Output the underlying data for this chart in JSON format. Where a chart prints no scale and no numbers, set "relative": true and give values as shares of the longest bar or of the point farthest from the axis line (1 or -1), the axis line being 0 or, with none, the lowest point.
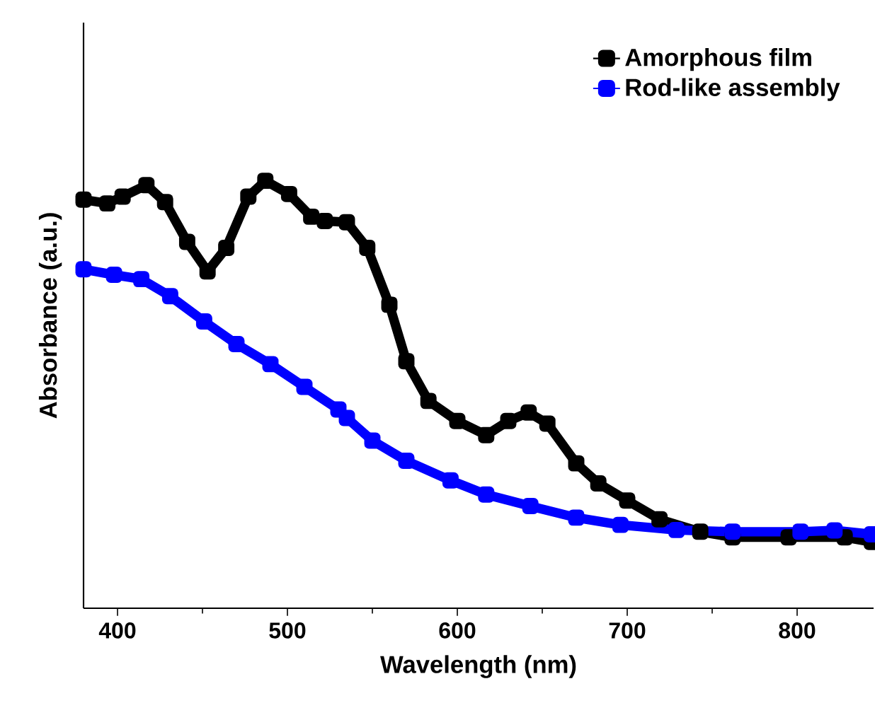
{
  "chart_data": {
    "type": "line",
    "xlabel": "Wavelength (nm)",
    "ylabel": "Absorbance (a.u.)",
    "relative": true,
    "xlim": [
      380,
      845
    ],
    "xticks": [
      400,
      500,
      600,
      700,
      800
    ],
    "tick_labels": "x",
    "legend": "top right",
    "marker": "square",
    "line_style": "solid",
    "series": [
      {
        "name": "Amorphous film",
        "color": "#000000",
        "x": [
          380,
          394,
          403,
          417,
          428,
          441,
          453,
          464,
          477,
          487,
          501,
          514,
          522,
          535,
          547,
          560,
          570,
          583,
          600,
          617,
          630,
          642,
          653,
          670,
          683,
          700,
          719,
          743,
          762,
          795,
          828,
          844
        ],
        "values": [
          0.956,
          0.947,
          0.963,
          0.99,
          0.95,
          0.857,
          0.788,
          0.843,
          0.963,
          1.0,
          0.969,
          0.916,
          0.906,
          0.903,
          0.843,
          0.71,
          0.578,
          0.485,
          0.438,
          0.405,
          0.438,
          0.458,
          0.432,
          0.339,
          0.292,
          0.252,
          0.208,
          0.179,
          0.166,
          0.166,
          0.166,
          0.155
        ]
      },
      {
        "name": "Rod-like assembly",
        "color": "#0000ff",
        "x": [
          380,
          398,
          414,
          431,
          451,
          470,
          490,
          510,
          530,
          535,
          550,
          570,
          596,
          617,
          643,
          670,
          696,
          729,
          762,
          802,
          822,
          844
        ],
        "values": [
          0.793,
          0.78,
          0.77,
          0.73,
          0.671,
          0.618,
          0.571,
          0.518,
          0.465,
          0.445,
          0.392,
          0.345,
          0.299,
          0.266,
          0.239,
          0.212,
          0.195,
          0.183,
          0.179,
          0.179,
          0.182,
          0.173
        ]
      }
    ]
  }
}
